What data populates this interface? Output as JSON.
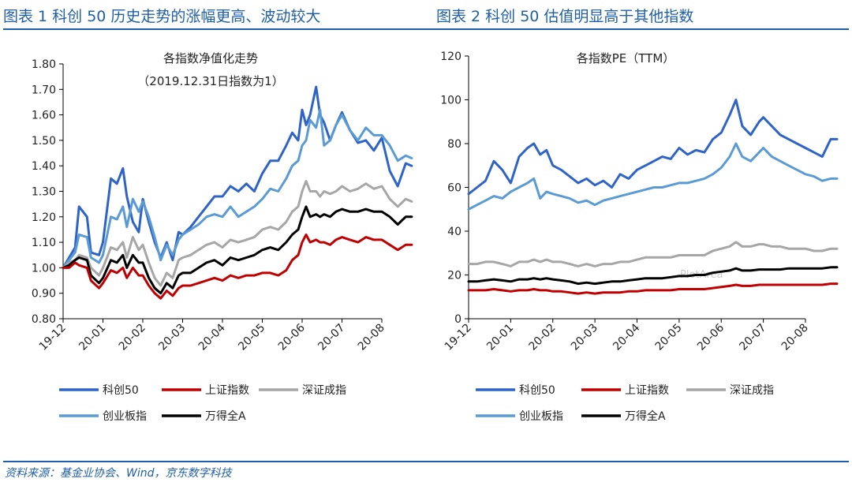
{
  "figure_titles": [
    "图表 1 科创 50 历史走势的涨幅更高、波动较大",
    "图表 2 科创 50 估值明显高于其他指数"
  ],
  "source": "资料来源：基金业协会、Wind，京东数字科技",
  "chart_data": [
    {
      "type": "line",
      "title": "各指数净值化走势",
      "subtitle": "（2019.12.31日指数为1）",
      "xlabel": "",
      "ylabel": "",
      "x_ticks": [
        "19-12",
        "20-01",
        "20-02",
        "20-03",
        "20-04",
        "20-05",
        "20-06",
        "20-07",
        "20-08"
      ],
      "y_ticks": [
        "0.80",
        "0.90",
        "1.00",
        "1.10",
        "1.20",
        "1.30",
        "1.40",
        "1.50",
        "1.60",
        "1.70",
        "1.80"
      ],
      "ylim": [
        0.8,
        1.8
      ],
      "y_decimals": 2,
      "x": [
        0,
        0.15,
        0.3,
        0.4,
        0.6,
        0.7,
        0.9,
        1.0,
        1.2,
        1.35,
        1.5,
        1.6,
        1.75,
        1.9,
        2.0,
        2.15,
        2.3,
        2.45,
        2.6,
        2.75,
        2.9,
        3.0,
        3.2,
        3.4,
        3.6,
        3.8,
        4.0,
        4.2,
        4.4,
        4.6,
        4.8,
        5.0,
        5.2,
        5.4,
        5.6,
        5.75,
        5.9,
        6.0,
        6.1,
        6.2,
        6.35,
        6.45,
        6.55,
        6.7,
        6.85,
        7.0,
        7.2,
        7.4,
        7.6,
        7.8,
        8.0,
        8.2,
        8.4,
        8.6,
        8.75
      ],
      "grid": false,
      "legend": "bottom",
      "series": [
        {
          "name": "科创50",
          "color": "#2e63c8",
          "values": [
            1.0,
            1.04,
            1.08,
            1.24,
            1.2,
            1.06,
            1.05,
            1.1,
            1.35,
            1.33,
            1.39,
            1.28,
            1.18,
            1.14,
            1.27,
            1.18,
            1.1,
            1.04,
            1.1,
            1.03,
            1.14,
            1.13,
            1.16,
            1.2,
            1.24,
            1.28,
            1.28,
            1.32,
            1.3,
            1.33,
            1.3,
            1.37,
            1.42,
            1.42,
            1.48,
            1.53,
            1.5,
            1.62,
            1.56,
            1.6,
            1.71,
            1.6,
            1.57,
            1.5,
            1.56,
            1.61,
            1.54,
            1.49,
            1.5,
            1.46,
            1.51,
            1.38,
            1.32,
            1.41,
            1.4
          ]
        },
        {
          "name": "创业板指",
          "color": "#5b9bd5",
          "values": [
            1.0,
            1.03,
            1.06,
            1.13,
            1.12,
            1.04,
            1.02,
            1.05,
            1.2,
            1.19,
            1.24,
            1.16,
            1.27,
            1.22,
            1.26,
            1.2,
            1.12,
            1.03,
            1.09,
            1.05,
            1.11,
            1.13,
            1.15,
            1.17,
            1.2,
            1.21,
            1.2,
            1.24,
            1.2,
            1.22,
            1.24,
            1.27,
            1.31,
            1.3,
            1.35,
            1.4,
            1.42,
            1.48,
            1.5,
            1.58,
            1.55,
            1.62,
            1.48,
            1.5,
            1.56,
            1.6,
            1.54,
            1.5,
            1.55,
            1.52,
            1.52,
            1.48,
            1.42,
            1.44,
            1.43
          ]
        },
        {
          "name": "深证成指",
          "color": "#a6a6a6",
          "values": [
            1.0,
            1.02,
            1.03,
            1.05,
            1.04,
            1.0,
            0.97,
            1.0,
            1.08,
            1.07,
            1.1,
            1.04,
            1.12,
            1.07,
            1.09,
            1.02,
            0.96,
            0.93,
            0.98,
            0.96,
            1.03,
            1.04,
            1.05,
            1.07,
            1.09,
            1.1,
            1.08,
            1.11,
            1.1,
            1.11,
            1.12,
            1.15,
            1.16,
            1.15,
            1.18,
            1.22,
            1.24,
            1.3,
            1.34,
            1.3,
            1.3,
            1.28,
            1.3,
            1.29,
            1.3,
            1.32,
            1.3,
            1.31,
            1.33,
            1.31,
            1.32,
            1.27,
            1.24,
            1.27,
            1.26
          ]
        },
        {
          "name": "万得全A",
          "color": "#000000",
          "values": [
            1.0,
            1.01,
            1.03,
            1.04,
            1.03,
            0.97,
            0.94,
            0.96,
            1.03,
            1.02,
            1.05,
            1.0,
            1.05,
            1.02,
            1.02,
            0.96,
            0.92,
            0.9,
            0.94,
            0.92,
            0.97,
            0.98,
            0.98,
            1.0,
            1.02,
            1.03,
            1.01,
            1.04,
            1.03,
            1.04,
            1.05,
            1.07,
            1.08,
            1.07,
            1.1,
            1.13,
            1.15,
            1.2,
            1.24,
            1.2,
            1.21,
            1.2,
            1.21,
            1.2,
            1.22,
            1.23,
            1.22,
            1.22,
            1.23,
            1.22,
            1.22,
            1.2,
            1.17,
            1.2,
            1.2
          ]
        },
        {
          "name": "上证指数",
          "color": "#c00000",
          "values": [
            1.0,
            1.0,
            1.02,
            1.01,
            1.0,
            0.95,
            0.92,
            0.94,
            0.99,
            0.98,
            1.0,
            0.96,
            1.0,
            0.97,
            0.97,
            0.93,
            0.9,
            0.88,
            0.91,
            0.89,
            0.92,
            0.93,
            0.93,
            0.94,
            0.95,
            0.96,
            0.95,
            0.97,
            0.96,
            0.97,
            0.97,
            0.98,
            0.98,
            0.97,
            0.99,
            1.03,
            1.05,
            1.1,
            1.13,
            1.1,
            1.11,
            1.1,
            1.1,
            1.09,
            1.11,
            1.12,
            1.11,
            1.1,
            1.12,
            1.11,
            1.11,
            1.09,
            1.07,
            1.09,
            1.09
          ]
        }
      ]
    },
    {
      "type": "line",
      "title": "各指数PE（TTM）",
      "subtitle": "",
      "xlabel": "",
      "ylabel": "",
      "x_ticks": [
        "19-12",
        "20-01",
        "20-02",
        "20-03",
        "20-04",
        "20-05",
        "20-06",
        "20-07",
        "20-08"
      ],
      "y_ticks": [
        "0",
        "20",
        "40",
        "60",
        "80",
        "100",
        "120"
      ],
      "ylim": [
        0,
        120
      ],
      "y_decimals": 0,
      "x": [
        0,
        0.2,
        0.4,
        0.6,
        0.8,
        1.0,
        1.2,
        1.4,
        1.55,
        1.7,
        1.85,
        2.0,
        2.2,
        2.4,
        2.6,
        2.8,
        3.0,
        3.2,
        3.4,
        3.6,
        3.8,
        4.0,
        4.2,
        4.4,
        4.6,
        4.8,
        5.0,
        5.2,
        5.4,
        5.6,
        5.8,
        6.0,
        6.2,
        6.35,
        6.5,
        6.7,
        6.9,
        7.0,
        7.2,
        7.4,
        7.6,
        7.8,
        8.0,
        8.2,
        8.4,
        8.6,
        8.75
      ],
      "grid": false,
      "legend": "bottom",
      "series": [
        {
          "name": "科创50",
          "color": "#2e63c8",
          "values": [
            57,
            60,
            63,
            72,
            68,
            62,
            74,
            78,
            80,
            75,
            77,
            70,
            68,
            65,
            62,
            64,
            61,
            63,
            60,
            66,
            64,
            68,
            70,
            72,
            74,
            73,
            78,
            75,
            77,
            76,
            82,
            85,
            93,
            100,
            88,
            84,
            90,
            92,
            88,
            84,
            82,
            80,
            78,
            76,
            74,
            82,
            82
          ]
        },
        {
          "name": "创业板指",
          "color": "#5b9bd5",
          "values": [
            50,
            52,
            54,
            56,
            55,
            58,
            60,
            62,
            64,
            55,
            58,
            57,
            56,
            55,
            53,
            54,
            52,
            54,
            55,
            56,
            57,
            58,
            59,
            60,
            60,
            61,
            62,
            62,
            63,
            64,
            66,
            69,
            74,
            80,
            74,
            72,
            76,
            78,
            74,
            72,
            70,
            68,
            66,
            65,
            63,
            64,
            64
          ]
        },
        {
          "name": "深证成指",
          "color": "#a6a6a6",
          "values": [
            25,
            25,
            26,
            26,
            25,
            24,
            26,
            26,
            27,
            26,
            27,
            26,
            26,
            25,
            24,
            25,
            24,
            25,
            25,
            26,
            26,
            27,
            28,
            28,
            28,
            28,
            29,
            29,
            29,
            29,
            31,
            32,
            33,
            35,
            33,
            33,
            34,
            34,
            33,
            33,
            32,
            32,
            32,
            31,
            31,
            32,
            32
          ]
        },
        {
          "name": "万得全A",
          "color": "#000000",
          "values": [
            17,
            17,
            17.5,
            18,
            17.5,
            17,
            18,
            18,
            18.5,
            18,
            18.5,
            18,
            17.5,
            17,
            16,
            16.5,
            16,
            16.5,
            17,
            17,
            17.5,
            18,
            18.5,
            18.5,
            18.5,
            19,
            19.5,
            19.5,
            20,
            20,
            21,
            21.5,
            22,
            23,
            22,
            22,
            22.5,
            22.5,
            22.5,
            22.5,
            23,
            23,
            23,
            23,
            23,
            23.5,
            23.5
          ]
        },
        {
          "name": "上证指数",
          "color": "#c00000",
          "values": [
            13,
            13,
            13,
            13.5,
            13,
            12.5,
            13,
            13,
            13.5,
            13,
            13,
            12.5,
            12.5,
            12,
            11.5,
            12,
            11.5,
            12,
            12,
            12,
            12.5,
            12.5,
            13,
            13,
            13,
            13,
            13.5,
            13.5,
            13.5,
            13.5,
            14,
            14.5,
            15,
            15.5,
            15,
            15,
            15.5,
            15.5,
            15.5,
            15.5,
            15.5,
            15.5,
            15.5,
            15.5,
            15.5,
            16,
            16
          ]
        }
      ]
    }
  ]
}
